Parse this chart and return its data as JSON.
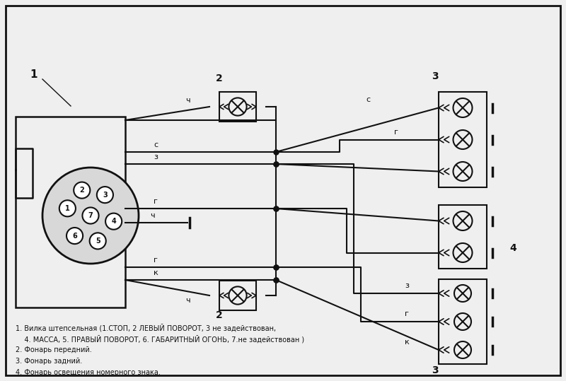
{
  "bg_color": "#efefef",
  "line_color": "#111111",
  "text_legend_line1": "1. Вилка штепсельная (1.СТОП, 2 ЛЕВЫЙ ПОВОРОТ, 3 не задействован,",
  "text_legend_line2": "    4. МАССА, 5. ПРАВЫЙ ПОВОРОТ, 6. ГАБАРИТНЫЙ ОГОНЬ, 7.не задействован )",
  "text_legend_line3": "2. Фонарь передний.",
  "text_legend_line4": "3. Фонарь задний.",
  "text_legend_line5": "4. Фонарь освещения номерного знака."
}
